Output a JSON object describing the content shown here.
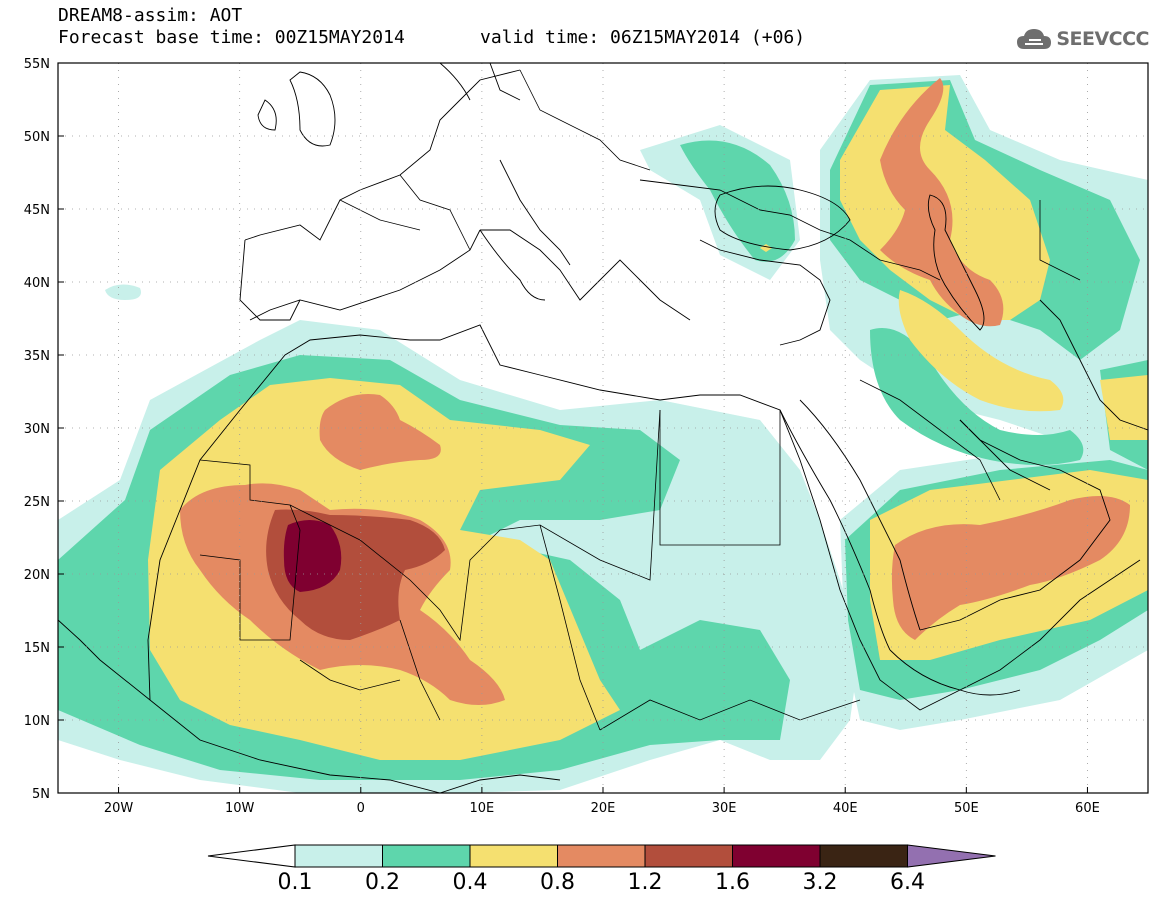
{
  "header": {
    "title": "DREAM8-assim: AOT",
    "base_time": "Forecast base time: 00Z15MAY2014",
    "valid_time": "valid time: 06Z15MAY2014 (+06)",
    "logo_text": "SEEVCCC"
  },
  "map": {
    "lat_labels": [
      "55N",
      "50N",
      "45N",
      "40N",
      "35N",
      "30N",
      "25N",
      "20N",
      "15N",
      "10N",
      "5N"
    ],
    "lon_labels": [
      "20W",
      "10W",
      "0",
      "10E",
      "20E",
      "30E",
      "40E",
      "50E",
      "60E"
    ]
  },
  "colorbar": {
    "levels": [
      "0.1",
      "0.2",
      "0.4",
      "0.8",
      "1.2",
      "1.6",
      "3.2",
      "6.4"
    ],
    "colors": [
      "#c8f0ea",
      "#5ed6ac",
      "#f5e070",
      "#e48a62",
      "#b24e3c",
      "#7f0030",
      "#3a2414",
      "#9370b0"
    ]
  },
  "colors": {
    "c1": "#c8f0ea",
    "c2": "#5ed6ac",
    "c3": "#f5e070",
    "c4": "#e48a62",
    "c5": "#b24e3c",
    "c6": "#7f0030"
  }
}
